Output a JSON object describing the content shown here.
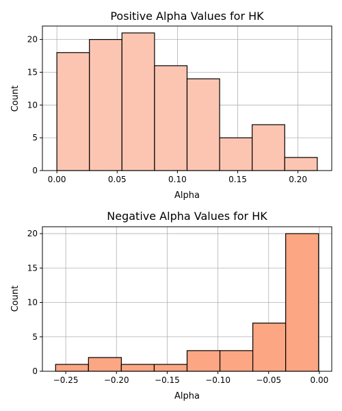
{
  "chart_data": [
    {
      "type": "bar",
      "title": "Positive Alpha Values for HK",
      "xlabel": "Alpha",
      "ylabel": "Count",
      "bin_edges": [
        0.0,
        0.027,
        0.054,
        0.081,
        0.108,
        0.135,
        0.162,
        0.189,
        0.216
      ],
      "values": [
        18,
        20,
        21,
        16,
        14,
        5,
        7,
        2
      ],
      "xlim": [
        -0.012,
        0.228
      ],
      "ylim": [
        0,
        22.05
      ],
      "xticks": [
        0.0,
        0.05,
        0.1,
        0.15,
        0.2
      ],
      "xtick_labels": [
        "0.00",
        "0.05",
        "0.10",
        "0.15",
        "0.20"
      ],
      "yticks": [
        0,
        5,
        10,
        15,
        20
      ],
      "ytick_labels": [
        "0",
        "5",
        "10",
        "15",
        "20"
      ],
      "grid": true,
      "color": "#fcc5b2"
    },
    {
      "type": "bar",
      "title": "Negative Alpha Values for HK",
      "xlabel": "Alpha",
      "ylabel": "Count",
      "bin_edges": [
        -0.26,
        -0.2276,
        -0.1952,
        -0.1628,
        -0.1304,
        -0.098,
        -0.0656,
        -0.0332,
        -0.0008
      ],
      "values": [
        1,
        2,
        1,
        1,
        3,
        3,
        7,
        20
      ],
      "xlim": [
        -0.273,
        0.0122
      ],
      "ylim": [
        0,
        21
      ],
      "xticks": [
        -0.25,
        -0.2,
        -0.15,
        -0.1,
        -0.05,
        0.0
      ],
      "xtick_labels": [
        "−0.25",
        "−0.20",
        "−0.15",
        "−0.10",
        "−0.05",
        "0.00"
      ],
      "yticks": [
        0,
        5,
        10,
        15,
        20
      ],
      "ytick_labels": [
        "0",
        "5",
        "10",
        "15",
        "20"
      ],
      "grid": true,
      "color": "#fca683"
    }
  ]
}
